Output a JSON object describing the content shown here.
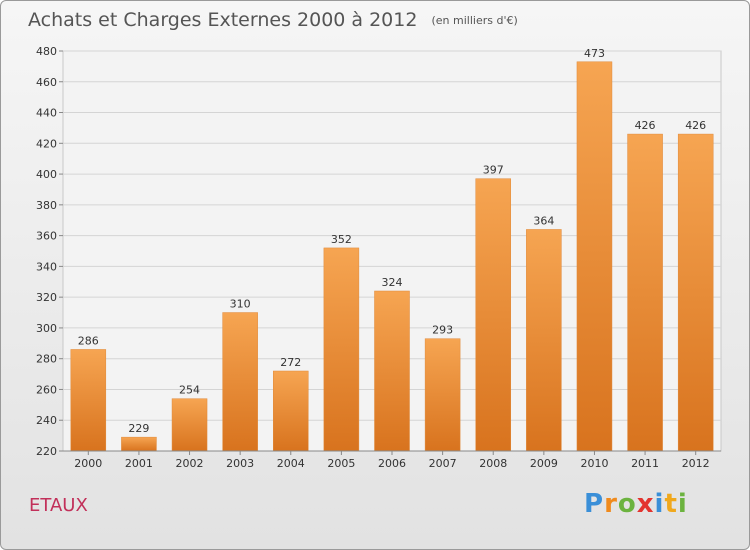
{
  "title": "Achats et Charges Externes 2000 à 2012",
  "unit": "(en milliers d'€)",
  "commune": "ETAUX",
  "brand": {
    "letters": [
      "P",
      "r",
      "o",
      "x",
      "i",
      "t",
      "i"
    ],
    "colors": [
      "#3a8fd8",
      "#f08a1c",
      "#6cb33f",
      "#e3342f",
      "#3a8fd8",
      "#f0a81c",
      "#6cb33f"
    ]
  },
  "colors": {
    "bar_top": "#f6a552",
    "bar_bottom": "#d8731e",
    "grid": "#d4d4d4",
    "title": "#555555",
    "commune": "#c2305a"
  },
  "chart_data": {
    "type": "bar",
    "title": "Achats et Charges Externes 2000 à 2012",
    "xlabel": "",
    "ylabel": "",
    "categories": [
      "2000",
      "2001",
      "2002",
      "2003",
      "2004",
      "2005",
      "2006",
      "2007",
      "2008",
      "2009",
      "2010",
      "2011",
      "2012"
    ],
    "values": [
      286,
      229,
      254,
      310,
      272,
      352,
      324,
      293,
      397,
      364,
      473,
      426,
      426
    ],
    "ylim": [
      220,
      480
    ],
    "yticks": [
      220,
      240,
      260,
      280,
      300,
      320,
      340,
      360,
      380,
      400,
      420,
      440,
      460,
      480
    ],
    "grid": true,
    "legend": "none"
  }
}
